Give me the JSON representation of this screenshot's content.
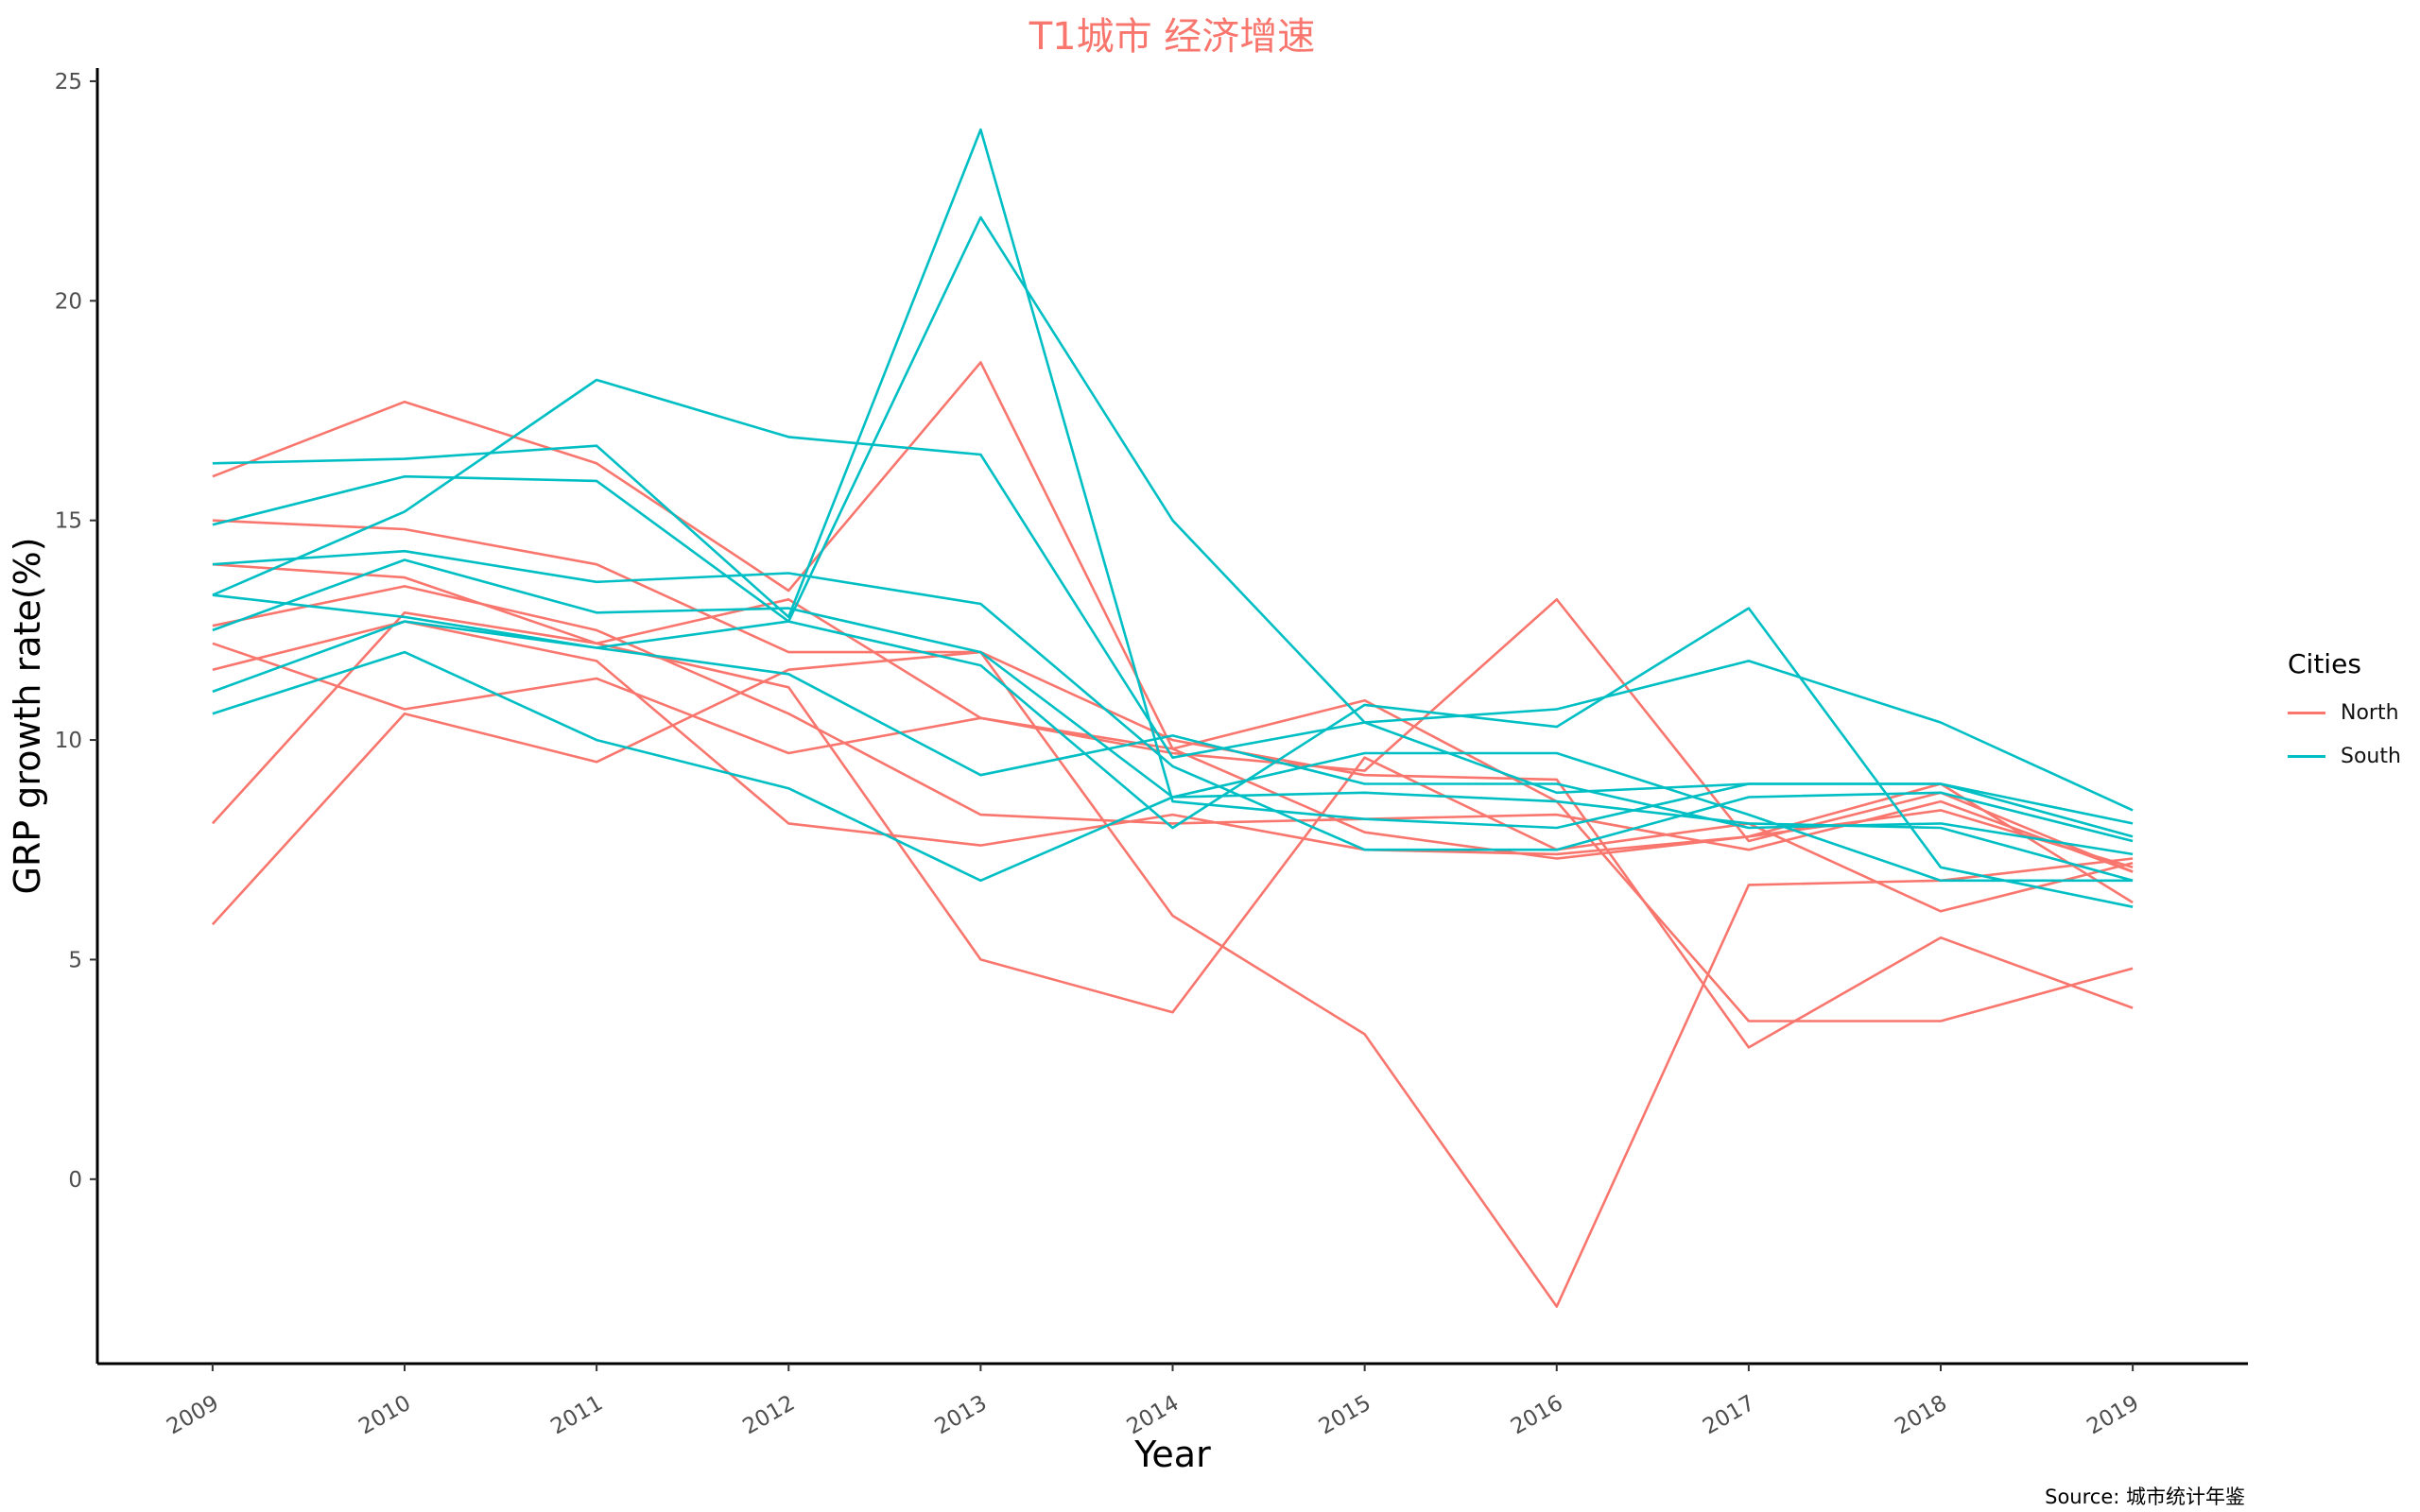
{
  "chart_data": {
    "type": "line",
    "title": "T1城市 经济增速",
    "xlabel": "Year",
    "ylabel": "GRP growth rate(%)",
    "source": "Source: 城市统计年鉴",
    "legend_title": "Cities",
    "legend_position": "right",
    "grid": false,
    "xlim": [
      2008.4,
      2019.6
    ],
    "ylim": [
      -4.2,
      25.3
    ],
    "x_ticks": [
      "2009",
      "2010",
      "2011",
      "2012",
      "2013",
      "2014",
      "2015",
      "2016",
      "2017",
      "2018",
      "2019"
    ],
    "y_ticks": [
      "0",
      "5",
      "10",
      "15",
      "20",
      "25"
    ],
    "x": [
      2009,
      2010,
      2011,
      2012,
      2013,
      2014,
      2015,
      2016,
      2017,
      2018,
      2019
    ],
    "colors": {
      "North": "#F8766D",
      "South": "#00BFC4"
    },
    "groups": [
      "North",
      "South"
    ],
    "series": [
      {
        "group": "North",
        "values": [
          16.0,
          17.7,
          16.3,
          13.4,
          18.6,
          9.8,
          10.9,
          8.6,
          3.6,
          3.6,
          4.8
        ]
      },
      {
        "group": "North",
        "values": [
          15.0,
          14.8,
          14.0,
          12.0,
          12.0,
          10.0,
          9.2,
          9.1,
          3.0,
          5.5,
          3.9
        ]
      },
      {
        "group": "North",
        "values": [
          14.0,
          13.7,
          12.2,
          13.2,
          10.5,
          9.7,
          9.3,
          13.2,
          7.7,
          8.8,
          7.0
        ]
      },
      {
        "group": "North",
        "values": [
          12.6,
          13.5,
          12.5,
          10.6,
          8.3,
          8.1,
          8.2,
          8.3,
          7.5,
          8.6,
          7.0
        ]
      },
      {
        "group": "North",
        "values": [
          12.2,
          10.7,
          11.4,
          9.7,
          10.5,
          9.8,
          7.9,
          7.3,
          7.8,
          9.0,
          6.3
        ]
      },
      {
        "group": "North",
        "values": [
          11.6,
          12.7,
          11.8,
          8.1,
          7.6,
          8.3,
          7.5,
          7.4,
          7.8,
          8.4,
          7.1
        ]
      },
      {
        "group": "North",
        "values": [
          8.1,
          12.9,
          12.2,
          11.2,
          5.0,
          3.8,
          9.6,
          7.5,
          8.1,
          6.1,
          7.2
        ]
      },
      {
        "group": "North",
        "values": [
          5.8,
          10.6,
          9.5,
          11.6,
          12.0,
          6.0,
          3.3,
          -2.9,
          6.7,
          6.8,
          7.3
        ]
      },
      {
        "group": "South",
        "values": [
          16.3,
          16.4,
          16.7,
          12.8,
          23.9,
          8.6,
          8.2,
          8.0,
          9.0,
          9.0,
          7.8
        ]
      },
      {
        "group": "South",
        "values": [
          14.9,
          16.0,
          15.9,
          12.7,
          21.9,
          15.0,
          10.4,
          8.8,
          9.0,
          9.0,
          8.1
        ]
      },
      {
        "group": "South",
        "values": [
          14.0,
          14.3,
          13.6,
          13.8,
          13.1,
          9.4,
          7.5,
          7.5,
          8.7,
          8.8,
          7.7
        ]
      },
      {
        "group": "South",
        "values": [
          13.3,
          15.2,
          18.2,
          16.9,
          16.5,
          9.6,
          10.4,
          10.7,
          11.8,
          10.4,
          8.4
        ]
      },
      {
        "group": "South",
        "values": [
          12.5,
          14.1,
          12.9,
          13.0,
          12.0,
          8.7,
          8.8,
          8.6,
          8.1,
          8.0,
          6.8
        ]
      },
      {
        "group": "South",
        "values": [
          11.1,
          12.7,
          12.1,
          12.7,
          11.7,
          8.0,
          10.8,
          10.3,
          13.0,
          7.1,
          6.2
        ]
      },
      {
        "group": "South",
        "values": [
          10.6,
          12.0,
          10.0,
          8.9,
          6.8,
          8.7,
          9.7,
          9.7,
          8.3,
          6.8,
          6.8
        ]
      },
      {
        "group": "South",
        "values": [
          13.3,
          12.8,
          12.1,
          11.5,
          9.2,
          10.1,
          9.0,
          9.0,
          8.0,
          8.1,
          7.4
        ]
      }
    ]
  }
}
